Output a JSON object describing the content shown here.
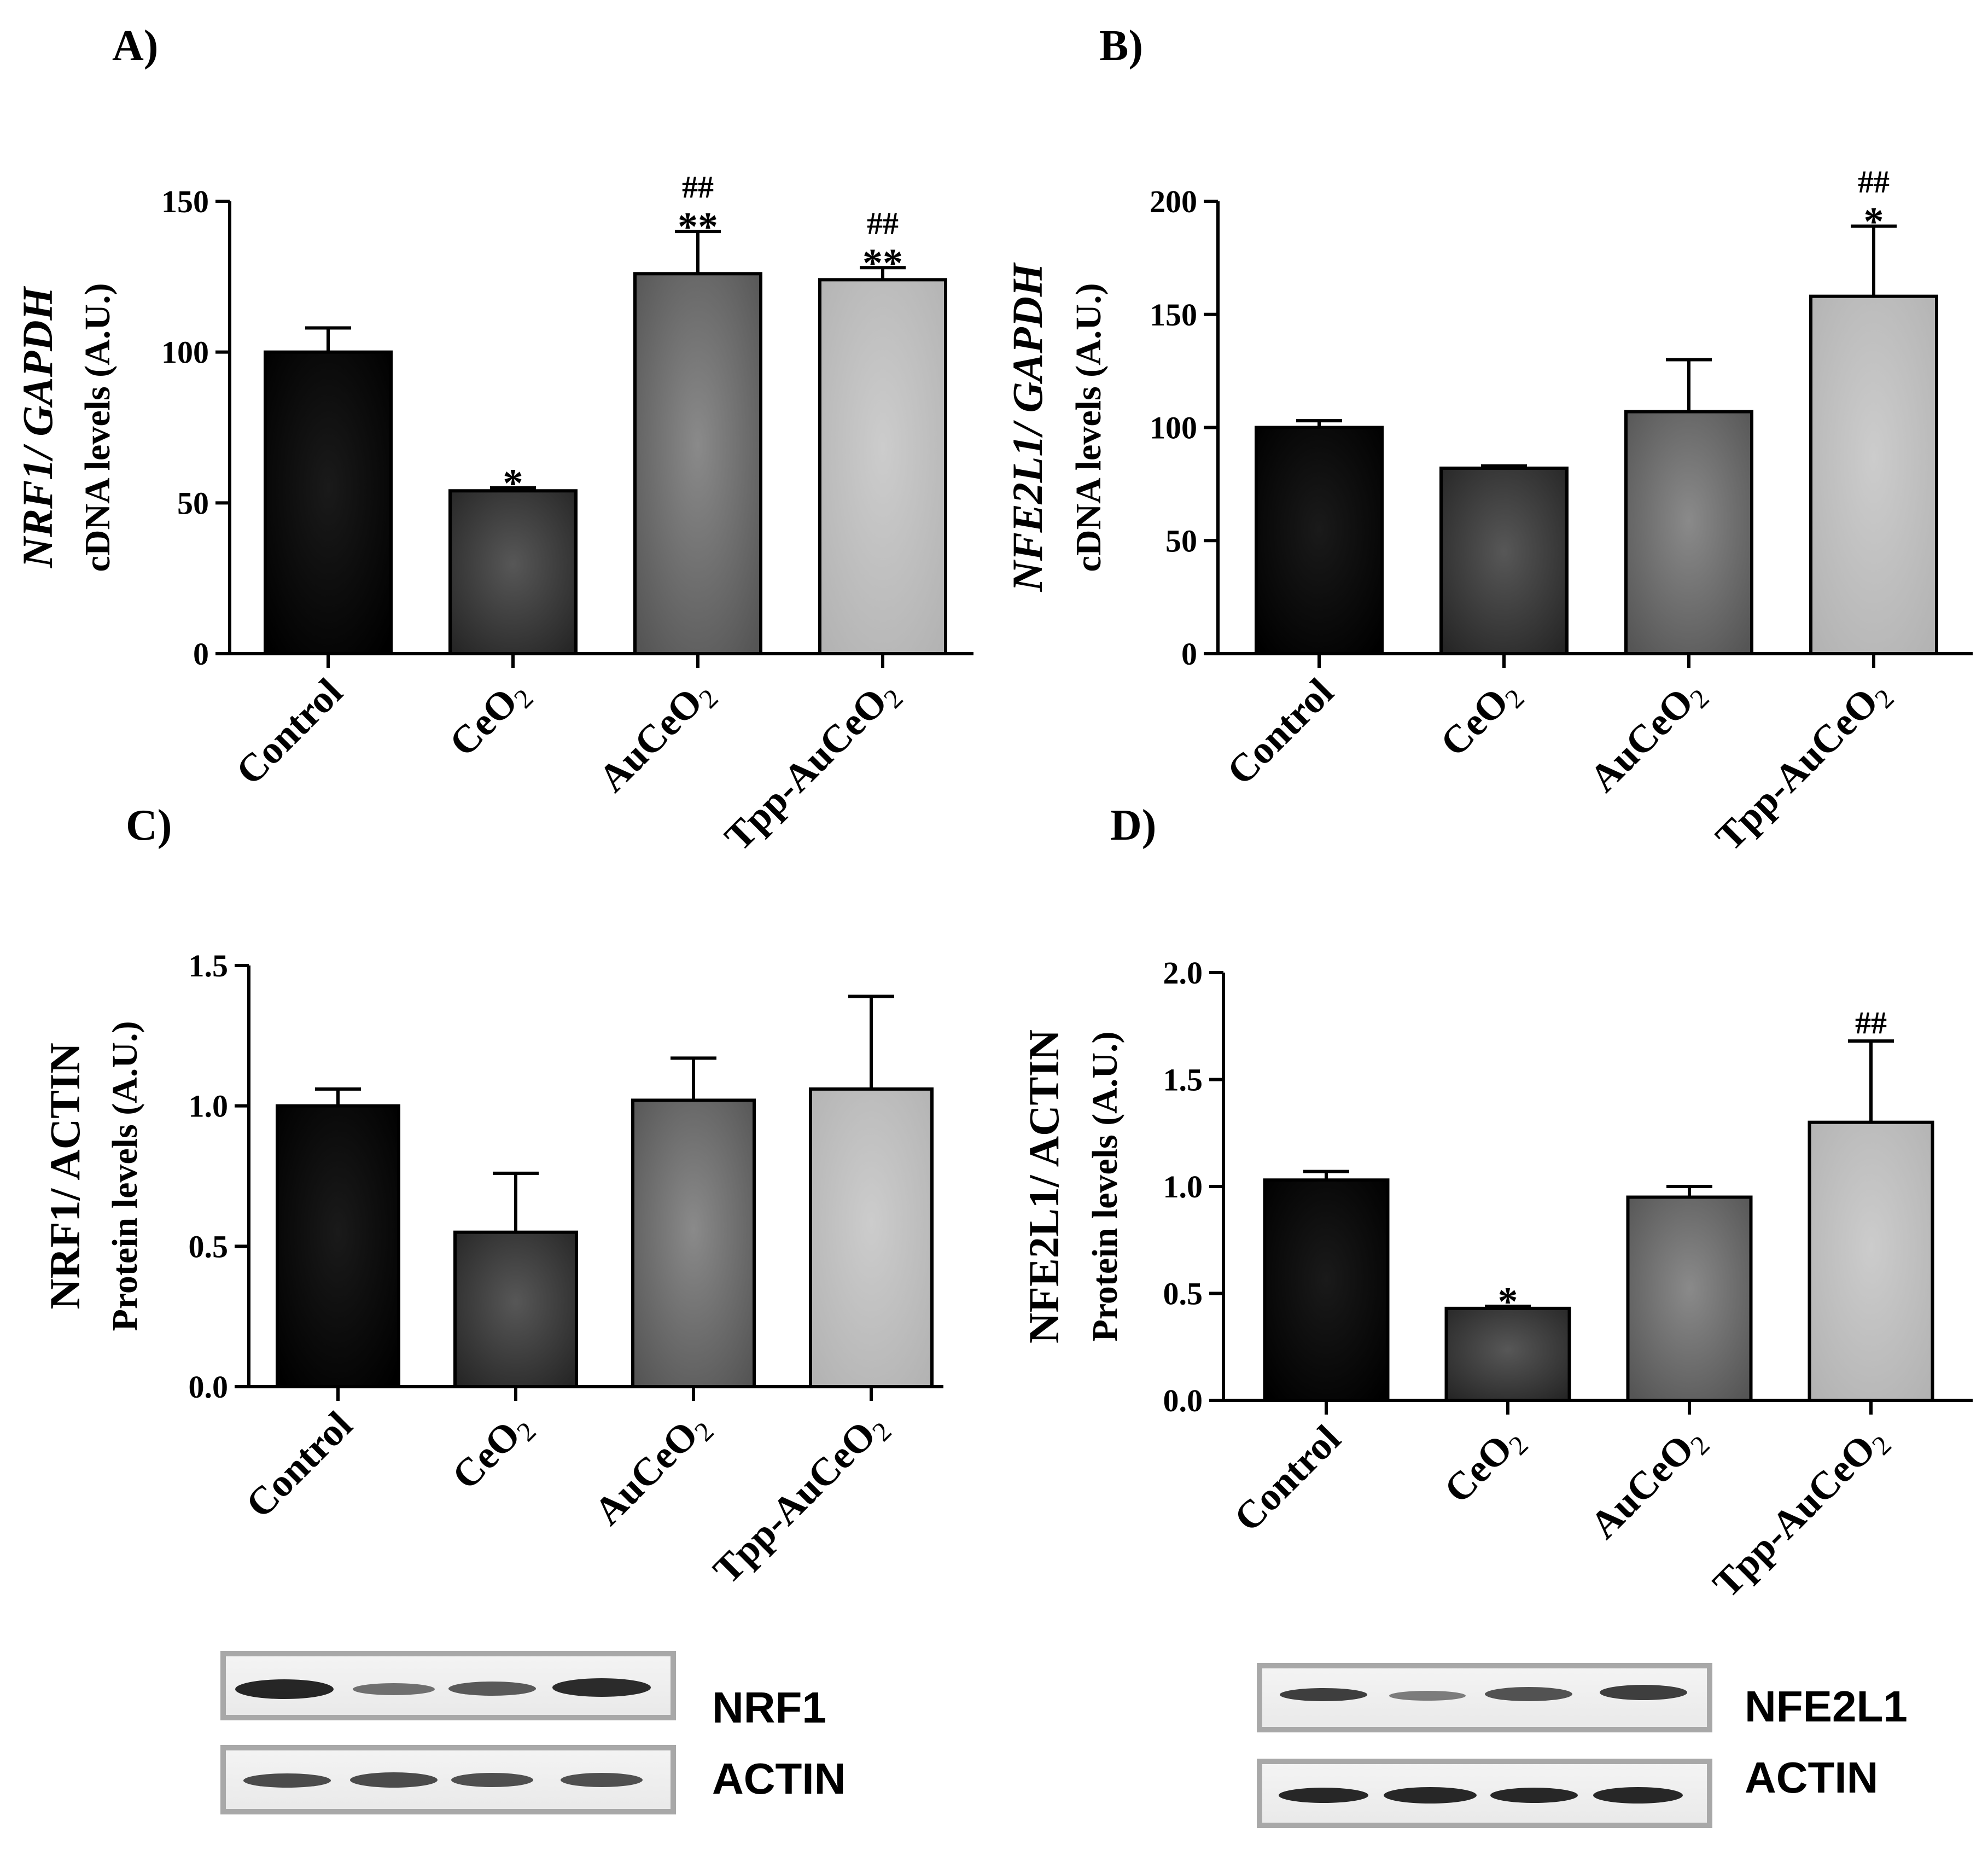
{
  "figure": {
    "panels": [
      "A)",
      "B)",
      "C)",
      "D)"
    ]
  },
  "chart_data": [
    {
      "panel_label": "A)",
      "type": "bar",
      "categories": [
        "Control",
        "CeO",
        "AuCeO",
        "Tpp-AuCeO"
      ],
      "category_subscripts": [
        "",
        "2",
        "2",
        "2"
      ],
      "values": [
        100,
        54,
        126,
        124
      ],
      "errors": [
        8,
        1,
        14,
        4
      ],
      "annotations_star": [
        "",
        "*",
        "**",
        "**"
      ],
      "annotations_hash": [
        "",
        "",
        "##",
        "##"
      ],
      "ylabel_line1": "NRF1/ GAPDH",
      "ylabel_line2": "cDNA levels (A.U.)",
      "ylabel_italic_line1": true,
      "ylim": [
        0,
        150
      ],
      "yticks": [
        0,
        50,
        100,
        150
      ],
      "ytick_labels": [
        "0",
        "50",
        "100",
        "150"
      ],
      "colors": [
        "#000000",
        "#3a3a3a",
        "#707070",
        "#bdbdbd"
      ]
    },
    {
      "panel_label": "B)",
      "type": "bar",
      "categories": [
        "Control",
        "CeO",
        "AuCeO",
        "Tpp-AuCeO"
      ],
      "category_subscripts": [
        "",
        "2",
        "2",
        "2"
      ],
      "values": [
        100,
        82,
        107,
        158
      ],
      "errors": [
        3,
        1,
        23,
        31
      ],
      "annotations_star": [
        "",
        "",
        "",
        "*"
      ],
      "annotations_hash": [
        "",
        "",
        "",
        "##"
      ],
      "ylabel_line1": "NFE2L1/ GAPDH",
      "ylabel_line2": "cDNA levels (A.U.)",
      "ylabel_italic_line1": true,
      "ylim": [
        0,
        200
      ],
      "yticks": [
        0,
        50,
        100,
        150,
        200
      ],
      "ytick_labels": [
        "0",
        "50",
        "100",
        "150",
        "200"
      ],
      "colors": [
        "#000000",
        "#3a3a3a",
        "#707070",
        "#bdbdbd"
      ]
    },
    {
      "panel_label": "C)",
      "type": "bar",
      "categories": [
        "Control",
        "CeO",
        "AuCeO",
        "Tpp-AuCeO"
      ],
      "category_subscripts": [
        "",
        "2",
        "2",
        "2"
      ],
      "values": [
        1.0,
        0.55,
        1.02,
        1.06
      ],
      "errors": [
        0.06,
        0.21,
        0.15,
        0.33
      ],
      "annotations_star": [
        "",
        "",
        "",
        ""
      ],
      "annotations_hash": [
        "",
        "",
        "",
        ""
      ],
      "ylabel_line1": "NRF1/ ACTIN",
      "ylabel_line2": "Protein  levels (A.U.)",
      "ylabel_italic_line1": false,
      "ylim": [
        0,
        1.5
      ],
      "yticks": [
        0,
        0.5,
        1.0,
        1.5
      ],
      "ytick_labels": [
        "0.0",
        "0.5",
        "1.0",
        "1.5"
      ],
      "colors": [
        "#000000",
        "#3a3a3a",
        "#707070",
        "#bdbdbd"
      ],
      "blot": {
        "protein": "NRF1",
        "loading": "ACTIN"
      }
    },
    {
      "panel_label": "D)",
      "type": "bar",
      "categories": [
        "Control",
        "CeO",
        "AuCeO",
        "Tpp-AuCeO"
      ],
      "category_subscripts": [
        "",
        "2",
        "2",
        "2"
      ],
      "values": [
        1.03,
        0.43,
        0.95,
        1.3
      ],
      "errors": [
        0.04,
        0.01,
        0.05,
        0.38
      ],
      "annotations_star": [
        "",
        "*",
        "",
        ""
      ],
      "annotations_hash": [
        "",
        "",
        "",
        "##"
      ],
      "ylabel_line1": "NFE2L1/ ACTIN",
      "ylabel_line2": "Protein  levels (A.U.)",
      "ylabel_italic_line1": false,
      "ylim": [
        0,
        2.0
      ],
      "yticks": [
        0,
        0.5,
        1.0,
        1.5,
        2.0
      ],
      "ytick_labels": [
        "0.0",
        "0.5",
        "1.0",
        "1.5",
        "2.0"
      ],
      "colors": [
        "#000000",
        "#3a3a3a",
        "#707070",
        "#bdbdbd"
      ],
      "blot": {
        "protein": "NFE2L1",
        "loading": "ACTIN"
      }
    }
  ]
}
